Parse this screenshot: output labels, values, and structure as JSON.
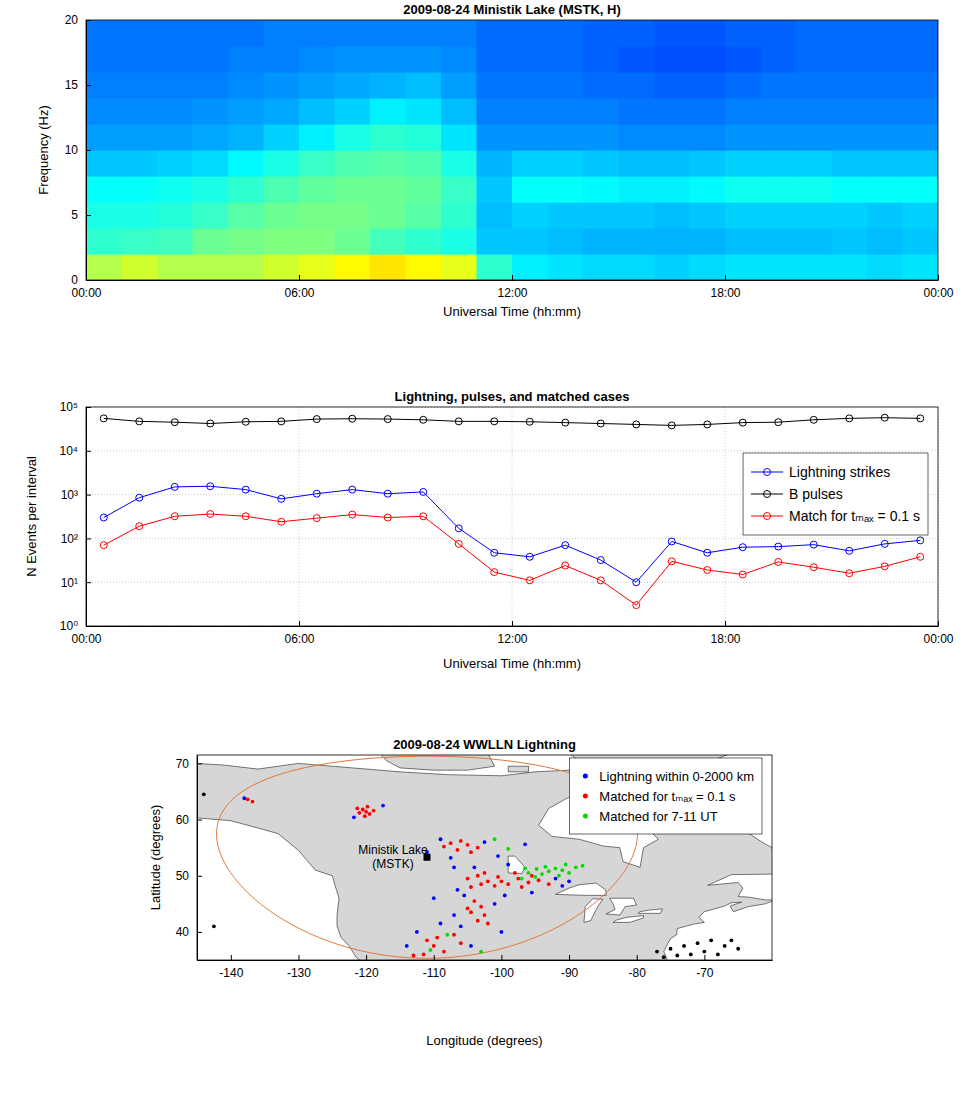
{
  "chart_data": [
    {
      "type": "heatmap",
      "title": "2009-08-24 Ministik Lake (MSTK, H)",
      "xlabel": "Universal Time (hh:mm)",
      "ylabel": "Frequency (Hz)",
      "xlim": [
        0,
        24
      ],
      "ylim": [
        0,
        20
      ],
      "xticks": [
        {
          "value": 0,
          "label": "00:00"
        },
        {
          "value": 6,
          "label": "06:00"
        },
        {
          "value": 12,
          "label": "12:00"
        },
        {
          "value": 18,
          "label": "18:00"
        },
        {
          "value": 24,
          "label": "00:00"
        }
      ],
      "yticks": [
        0,
        5,
        10,
        15,
        20
      ],
      "x_bins": [
        0,
        1,
        2,
        3,
        4,
        5,
        6,
        7,
        8,
        9,
        10,
        11,
        12,
        13,
        14,
        15,
        16,
        17,
        18,
        19,
        20,
        21,
        22,
        23,
        24
      ],
      "y_bins": [
        0,
        2,
        4,
        6,
        8,
        10,
        12,
        14,
        16,
        18,
        20
      ],
      "color_range": [
        0,
        10
      ],
      "cells": [
        [
          5.5,
          5.8,
          5.5,
          5.5,
          5.5,
          5.8,
          6,
          6.3,
          6.5,
          6.3,
          6,
          4.2,
          3.6,
          3.5,
          3.4,
          3.4,
          3.3,
          3.4,
          3.5,
          3.5,
          3.5,
          3.5,
          3.4,
          3.5
        ],
        [
          4.2,
          4.3,
          4.4,
          4.8,
          4.9,
          5,
          5,
          4.8,
          4.4,
          4.2,
          4,
          3.2,
          3.2,
          3.1,
          3,
          3,
          3,
          3,
          3.1,
          3.1,
          3.1,
          3.2,
          3.1,
          3.2
        ],
        [
          4,
          4,
          4.1,
          4.3,
          4.6,
          4.8,
          4.9,
          4.9,
          4.8,
          4.6,
          4.2,
          3.1,
          3.3,
          3.2,
          3.2,
          3.2,
          3.1,
          3.2,
          3.3,
          3.3,
          3.3,
          3.3,
          3.2,
          3.3
        ],
        [
          3.8,
          3.8,
          3.9,
          4,
          4.2,
          4.5,
          4.7,
          4.8,
          4.8,
          4.7,
          4.3,
          3.2,
          3.8,
          3.8,
          3.7,
          3.6,
          3.6,
          3.7,
          3.9,
          3.9,
          3.9,
          3.8,
          3.8,
          3.8
        ],
        [
          3.2,
          3.2,
          3.3,
          3.4,
          3.7,
          4,
          4.3,
          4.5,
          4.6,
          4.5,
          4,
          3,
          3.3,
          3.3,
          3.2,
          3.1,
          3.1,
          3.2,
          3.3,
          3.3,
          3.3,
          3.2,
          3.2,
          3.2
        ],
        [
          2.8,
          2.8,
          2.8,
          2.9,
          3,
          3.3,
          3.6,
          4,
          4.2,
          4.1,
          3.5,
          2.7,
          2.7,
          2.7,
          2.7,
          2.6,
          2.6,
          2.6,
          2.7,
          2.7,
          2.7,
          2.7,
          2.7,
          2.7
        ],
        [
          2.6,
          2.6,
          2.6,
          2.7,
          2.8,
          2.9,
          3.1,
          3.3,
          3.6,
          3.5,
          3.1,
          2.5,
          2.5,
          2.5,
          2.5,
          2.4,
          2.4,
          2.4,
          2.5,
          2.5,
          2.5,
          2.5,
          2.5,
          2.5
        ],
        [
          2.5,
          2.5,
          2.5,
          2.5,
          2.6,
          2.7,
          2.8,
          2.9,
          3,
          3.1,
          2.8,
          2.4,
          2.4,
          2.4,
          2.3,
          2.3,
          2.2,
          2.2,
          2.3,
          2.4,
          2.4,
          2.4,
          2.4,
          2.4
        ],
        [
          2.4,
          2.4,
          2.4,
          2.4,
          2.5,
          2.5,
          2.6,
          2.7,
          2.7,
          2.7,
          2.6,
          2.3,
          2.3,
          2.3,
          2.2,
          2.1,
          2,
          2,
          2.1,
          2.2,
          2.3,
          2.3,
          2.3,
          2.3
        ],
        [
          2.4,
          2.4,
          2.4,
          2.4,
          2.4,
          2.5,
          2.5,
          2.5,
          2.5,
          2.5,
          2.5,
          2.3,
          2.3,
          2.3,
          2.2,
          2.2,
          2.1,
          2.1,
          2.2,
          2.2,
          2.3,
          2.3,
          2.3,
          2.3
        ]
      ]
    },
    {
      "type": "line",
      "title": "Lightning, pulses, and matched cases",
      "xlabel": "Universal Time (hh:mm)",
      "ylabel": "N Events per interval",
      "log": "y",
      "grid": true,
      "legend": "upper right",
      "xlim": [
        0,
        24
      ],
      "ylim": [
        1,
        100000
      ],
      "xticks": [
        {
          "value": 0,
          "label": "00:00"
        },
        {
          "value": 6,
          "label": "06:00"
        },
        {
          "value": 12,
          "label": "12:00"
        },
        {
          "value": 18,
          "label": "18:00"
        },
        {
          "value": 24,
          "label": "00:00"
        }
      ],
      "yticks": [
        {
          "value": 1,
          "label": "10⁰"
        },
        {
          "value": 10,
          "label": "10¹"
        },
        {
          "value": 100,
          "label": "10²"
        },
        {
          "value": 1000,
          "label": "10³"
        },
        {
          "value": 10000,
          "label": "10⁴"
        },
        {
          "value": 100000,
          "label": "10⁵"
        }
      ],
      "x": [
        0.5,
        1.5,
        2.5,
        3.5,
        4.5,
        5.5,
        6.5,
        7.5,
        8.5,
        9.5,
        10.5,
        11.5,
        12.5,
        13.5,
        14.5,
        15.5,
        16.5,
        17.5,
        18.5,
        19.5,
        20.5,
        21.5,
        22.5,
        23.5
      ],
      "series": [
        {
          "name": "Lightning strikes",
          "color": "#0000ff",
          "marker": "circle",
          "line_style": "solid",
          "values": [
            300,
            850,
            1500,
            1550,
            1300,
            800,
            1050,
            1300,
            1050,
            1150,
            170,
            47,
            38,
            70,
            32,
            10,
            85,
            47,
            63,
            65,
            72,
            52,
            75,
            90
          ]
        },
        {
          "name": "B pulses",
          "color": "#000000",
          "marker": "circle",
          "line_style": "solid",
          "values": [
            55000,
            47000,
            45000,
            42000,
            46000,
            47000,
            53000,
            54000,
            53000,
            51000,
            47000,
            47000,
            46000,
            44000,
            42000,
            40000,
            38000,
            40000,
            44000,
            45000,
            51000,
            55000,
            57000,
            55000
          ]
        },
        {
          "name": "Match for tₘₐₓ = 0.1 s",
          "color": "#ff0000",
          "marker": "circle",
          "line_style": "solid",
          "values": [
            70,
            190,
            320,
            360,
            320,
            240,
            290,
            350,
            300,
            320,
            75,
            17,
            11,
            24,
            11,
            3,
            30,
            19,
            15,
            29,
            22,
            16,
            23,
            38
          ]
        }
      ]
    },
    {
      "type": "map",
      "title": "2009-08-24 WWLLN Lightning",
      "xlabel": "Longitude (degrees)",
      "ylabel": "Latitude (degrees)",
      "legend": "upper right",
      "xlim": [
        -145,
        -60
      ],
      "ylim": [
        35,
        71.5
      ],
      "xticks": [
        -140,
        -130,
        -120,
        -110,
        -100,
        -90,
        -80,
        -70
      ],
      "yticks": [
        40,
        50,
        60,
        70
      ],
      "annotations": [
        {
          "text": [
            "Ministik Lake",
            "(MSTK)"
          ],
          "x": -111,
          "y": 53.3,
          "marker": "square"
        }
      ],
      "range_circle": {
        "radius_km": 2000,
        "color": "#e0763a"
      },
      "series": [
        {
          "name": "Lightning within 0-2000 km",
          "color": "#0000ff",
          "marker": "dot",
          "x": [
            -138,
            -121.8,
            -117.5,
            -109,
            -102.5,
            -111,
            -107.5,
            -96.5,
            -99,
            -92,
            -90,
            -91,
            -107,
            -105.5,
            -99.5,
            -101,
            -107,
            -106,
            -112.5,
            -109,
            -114,
            -104.5,
            -100,
            -110,
            -106.5,
            -95.5,
            -104,
            -100.5
          ],
          "y": [
            63.8,
            60.4,
            62.5,
            56.5,
            56,
            54.2,
            53.2,
            55.6,
            52,
            49.5,
            49,
            48.2,
            51.5,
            46.5,
            46.5,
            45,
            43,
            41,
            40,
            41.5,
            37.5,
            37.5,
            40,
            46,
            47.5,
            47,
            51.5,
            53.5
          ]
        },
        {
          "name": "Matched for tₘₐₓ = 0.1 s",
          "color": "#ff0000",
          "marker": "dot",
          "x": [
            -120.5,
            -119.8,
            -121,
            -119.5,
            -120.2,
            -118.9,
            -121.3,
            -120.0,
            -137.5,
            -136.8,
            -107.5,
            -106,
            -105,
            -103.5,
            -106.5,
            -104.5,
            -108.5,
            -105,
            -103.5,
            -102,
            -100.5,
            -99,
            -97.5,
            -96,
            -94.5,
            -101,
            -103,
            -98,
            -104.5,
            -100,
            -95.5,
            -97,
            -102.5,
            -93,
            -104,
            -103,
            -104.5,
            -102.5,
            -103.5,
            -102,
            -105,
            -111,
            -110,
            -108.5,
            -111.5,
            -107,
            -109.5,
            -113,
            -106
          ],
          "y": [
            61.8,
            62.3,
            61.2,
            61.0,
            60.6,
            61.6,
            62.0,
            61.4,
            63.6,
            63.2,
            55.8,
            56.2,
            55.5,
            55,
            54.6,
            54.2,
            55.2,
            49.5,
            50,
            49,
            49.8,
            48.5,
            49.5,
            48.8,
            49.2,
            48.2,
            48.5,
            50.5,
            48,
            49,
            50,
            48,
            50.5,
            48.5,
            45.5,
            44.5,
            43.5,
            43,
            42,
            41.5,
            44.2,
            38.5,
            37.5,
            36.5,
            36,
            39.5,
            39,
            35.8,
            38
          ]
        },
        {
          "name": "Matched for 7-11 UT",
          "color": "#00dd00",
          "marker": "dot",
          "x": [
            -97,
            -96,
            -95,
            -94,
            -93,
            -92,
            -91,
            -90,
            -89,
            -88,
            -93.5,
            -91.5,
            -94.8,
            -90.5,
            -96.5,
            -108,
            -103,
            -99,
            -110.5,
            -101
          ],
          "y": [
            49.5,
            50.5,
            49.8,
            50.3,
            50.8,
            51.3,
            51,
            50.5,
            51.5,
            51.8,
            51.6,
            50,
            51.2,
            52,
            51.3,
            39.5,
            36.5,
            54.8,
            36.8,
            56.5
          ]
        },
        {
          "color": "#000000",
          "marker": "dot",
          "x": [
            -77,
            -75,
            -73,
            -71,
            -69,
            -72,
            -70,
            -67,
            -74,
            -68,
            -66,
            -76,
            -142.5,
            -144,
            -65
          ],
          "y": [
            36.5,
            37,
            37.5,
            38,
            38.5,
            36,
            36.5,
            37.5,
            35.8,
            36,
            38.5,
            35.5,
            41,
            64.5,
            37
          ]
        }
      ]
    }
  ]
}
